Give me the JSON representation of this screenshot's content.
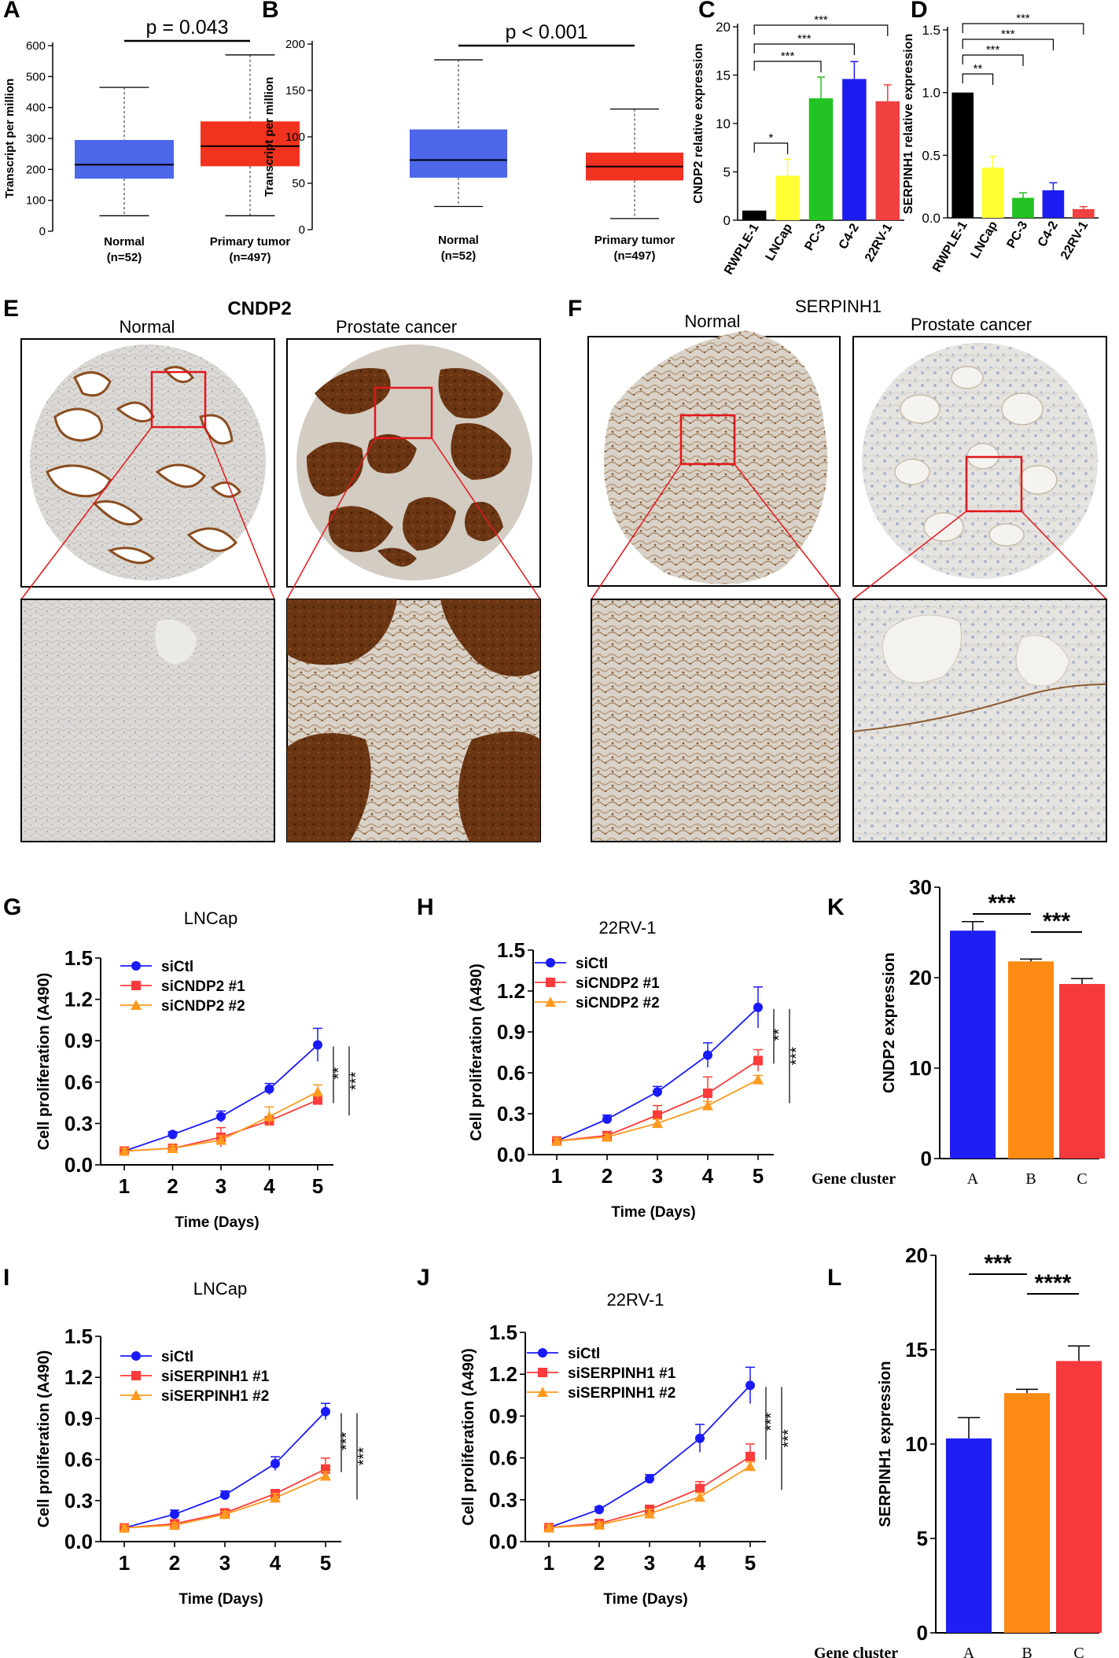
{
  "panels": {
    "A": {
      "label": "A",
      "p_text": "p = 0.043",
      "ylabel": "Transcript per  million",
      "yticks": [
        "0",
        "100",
        "200",
        "300",
        "400",
        "500",
        "600"
      ],
      "groups": [
        {
          "name": "Normal",
          "n": "(n=52)",
          "min": 50,
          "q1": 170,
          "median": 215,
          "q3": 295,
          "max": 465,
          "color": "#4c67e8"
        },
        {
          "name": "Primary tumor",
          "n": "(n=497)",
          "min": 50,
          "q1": 210,
          "median": 275,
          "q3": 355,
          "max": 570,
          "color": "#f0321e"
        }
      ],
      "ylim": [
        0,
        600
      ]
    },
    "B": {
      "label": "B",
      "p_text": "p < 0.001",
      "ylabel": "Transcript per  million",
      "yticks": [
        "0",
        "50",
        "100",
        "150",
        "200"
      ],
      "groups": [
        {
          "name": "Normal",
          "n": "(n=52)",
          "min": 25,
          "q1": 56,
          "median": 75,
          "q3": 108,
          "max": 183,
          "color": "#4c67e8"
        },
        {
          "name": "Primary tumor",
          "n": "(n=497)",
          "min": 12,
          "q1": 53,
          "median": 68,
          "q3": 83,
          "max": 130,
          "color": "#f0321e"
        }
      ],
      "ylim": [
        0,
        200
      ]
    },
    "C": {
      "label": "C",
      "ylabel": "CNDP2 relative expression",
      "yticks": [
        "0",
        "5",
        "10",
        "15",
        "20"
      ],
      "ylim": [
        0,
        20
      ],
      "bars": [
        {
          "name": "RWPLE-1",
          "value": 1.0,
          "err": 0.0,
          "color": "#000000"
        },
        {
          "name": "LNCap",
          "value": 4.6,
          "err": 1.7,
          "color": "#ffff33"
        },
        {
          "name": "PC-3",
          "value": 12.6,
          "err": 2.2,
          "color": "#22c322"
        },
        {
          "name": "C4-2",
          "value": 14.6,
          "err": 1.8,
          "color": "#1c1cf0"
        },
        {
          "name": "22RV-1",
          "value": 12.3,
          "err": 1.7,
          "color": "#f04040"
        }
      ],
      "sig": [
        "*",
        "***",
        "***",
        "***"
      ]
    },
    "D": {
      "label": "D",
      "ylabel": "SERPINH1  relative expression",
      "yticks": [
        "0.0",
        "0.5",
        "1.0",
        "1.5"
      ],
      "ylim": [
        0,
        1.5
      ],
      "bars": [
        {
          "name": "RWPLE-1",
          "value": 1.0,
          "err": 0.0,
          "color": "#000000"
        },
        {
          "name": "LNCap",
          "value": 0.4,
          "err": 0.09,
          "color": "#ffff33"
        },
        {
          "name": "PC-3",
          "value": 0.16,
          "err": 0.04,
          "color": "#22c322"
        },
        {
          "name": "C4-2",
          "value": 0.22,
          "err": 0.06,
          "color": "#1c1cf0"
        },
        {
          "name": "22RV-1",
          "value": 0.07,
          "err": 0.02,
          "color": "#f04040"
        }
      ],
      "sig": [
        "**",
        "***",
        "***",
        "***"
      ]
    },
    "E": {
      "label": "E",
      "title": "CNDP2",
      "left": "Normal",
      "right": "Prostate cancer"
    },
    "F": {
      "label": "F",
      "title": "SERPINH1",
      "left": "Normal",
      "right": "Prostate cancer"
    },
    "G": {
      "label": "G",
      "title": "LNCap"
    },
    "H": {
      "label": "H",
      "title": "22RV-1"
    },
    "I": {
      "label": "I",
      "title": "LNCap"
    },
    "J": {
      "label": "J",
      "title": "22RV-1"
    },
    "K": {
      "label": "K",
      "ylabel": "CNDP2 expression",
      "xlabel": "Gene cluster",
      "yticks": [
        "0",
        "10",
        "20",
        "30"
      ],
      "ylim": [
        0,
        30
      ],
      "bars": [
        {
          "name": "A",
          "value": 25.2,
          "err": 1.0,
          "color": "#1f1ff5"
        },
        {
          "name": "B",
          "value": 21.8,
          "err": 0.25,
          "color": "#ff8a14"
        },
        {
          "name": "C",
          "value": 19.3,
          "err": 0.6,
          "color": "#f5393d"
        }
      ],
      "sig": [
        "***",
        "***"
      ]
    },
    "L": {
      "label": "L",
      "ylabel": "SERPINH1 expression",
      "xlabel": "Gene cluster",
      "yticks": [
        "0",
        "5",
        "10",
        "15",
        "20"
      ],
      "ylim": [
        0,
        20
      ],
      "bars": [
        {
          "name": "A",
          "value": 10.3,
          "err": 1.1,
          "color": "#1f1ff5"
        },
        {
          "name": "B",
          "value": 12.7,
          "err": 0.2,
          "color": "#ff8a14"
        },
        {
          "name": "C",
          "value": 14.4,
          "err": 0.8,
          "color": "#f5393d"
        }
      ],
      "sig": [
        "***",
        "****"
      ]
    }
  },
  "line_common": {
    "xlabel": "Time (Days)",
    "ylabel": "Cell proliferation (A490)",
    "xticks": [
      "1",
      "2",
      "3",
      "4",
      "5"
    ],
    "yticks": [
      "0.0",
      "0.3",
      "0.6",
      "0.9",
      "1.2",
      "1.5"
    ],
    "ylim": [
      0,
      1.5
    ],
    "colors": [
      "#1a1aff",
      "#ff3b3b",
      "#ff9a1f"
    ]
  },
  "chart_data": [
    {
      "panel": "G",
      "type": "line",
      "title": "LNCap",
      "xlabel": "Time (Days)",
      "ylabel": "Cell proliferation (A490)",
      "x": [
        1,
        2,
        3,
        4,
        5
      ],
      "ylim": [
        0,
        1.5
      ],
      "series": [
        {
          "name": "siCtl",
          "values": [
            0.1,
            0.22,
            0.35,
            0.55,
            0.87
          ],
          "err": [
            0.02,
            0.02,
            0.04,
            0.04,
            0.12
          ]
        },
        {
          "name": "siCNDP2 #1",
          "values": [
            0.1,
            0.12,
            0.2,
            0.32,
            0.47
          ],
          "err": [
            0.02,
            0.02,
            0.07,
            0.03,
            0.03
          ]
        },
        {
          "name": "siCNDP2 #2",
          "values": [
            0.1,
            0.12,
            0.18,
            0.35,
            0.53
          ],
          "err": [
            0.02,
            0.02,
            0.03,
            0.07,
            0.05
          ]
        }
      ],
      "sig": [
        "**",
        "***"
      ]
    },
    {
      "panel": "H",
      "type": "line",
      "title": "22RV-1",
      "xlabel": "Time (Days)",
      "ylabel": "Cell proliferation (A490)",
      "x": [
        1,
        2,
        3,
        4,
        5
      ],
      "ylim": [
        0,
        1.5
      ],
      "series": [
        {
          "name": "siCtl",
          "values": [
            0.1,
            0.26,
            0.46,
            0.73,
            1.08
          ],
          "err": [
            0.02,
            0.03,
            0.04,
            0.09,
            0.15
          ]
        },
        {
          "name": "siCNDP2 #1",
          "values": [
            0.1,
            0.14,
            0.29,
            0.45,
            0.69
          ],
          "err": [
            0.02,
            0.02,
            0.07,
            0.12,
            0.08
          ]
        },
        {
          "name": "siCNDP2 #2",
          "values": [
            0.1,
            0.13,
            0.23,
            0.36,
            0.55
          ],
          "err": [
            0.02,
            0.02,
            0.03,
            0.03,
            0.03
          ]
        }
      ],
      "sig": [
        "**",
        "***"
      ]
    },
    {
      "panel": "I",
      "type": "line",
      "title": "LNCap",
      "xlabel": "Time (Days)",
      "ylabel": "Cell proliferation (A490)",
      "x": [
        1,
        2,
        3,
        4,
        5
      ],
      "ylim": [
        0,
        1.5
      ],
      "series": [
        {
          "name": "siCtl",
          "values": [
            0.1,
            0.2,
            0.34,
            0.57,
            0.95
          ],
          "err": [
            0.02,
            0.03,
            0.03,
            0.05,
            0.06
          ]
        },
        {
          "name": "siSERPINH1 #1",
          "values": [
            0.1,
            0.13,
            0.21,
            0.35,
            0.53
          ],
          "err": [
            0.02,
            0.02,
            0.02,
            0.03,
            0.08
          ]
        },
        {
          "name": "siSERPINH1 #2",
          "values": [
            0.1,
            0.12,
            0.2,
            0.32,
            0.48
          ],
          "err": [
            0.02,
            0.02,
            0.02,
            0.03,
            0.03
          ]
        }
      ],
      "sig": [
        "***",
        "***"
      ]
    },
    {
      "panel": "J",
      "type": "line",
      "title": "22RV-1",
      "xlabel": "Time (Days)",
      "ylabel": "Cell proliferation (A490)",
      "x": [
        1,
        2,
        3,
        4,
        5
      ],
      "ylim": [
        0,
        1.5
      ],
      "series": [
        {
          "name": "siCtl",
          "values": [
            0.1,
            0.23,
            0.45,
            0.74,
            1.12
          ],
          "err": [
            0.02,
            0.02,
            0.03,
            0.1,
            0.13
          ]
        },
        {
          "name": "siSERPINH1 #1",
          "values": [
            0.1,
            0.13,
            0.23,
            0.38,
            0.61
          ],
          "err": [
            0.02,
            0.02,
            0.03,
            0.05,
            0.09
          ]
        },
        {
          "name": "siSERPINH1 #2",
          "values": [
            0.1,
            0.12,
            0.2,
            0.32,
            0.54
          ],
          "err": [
            0.02,
            0.02,
            0.03,
            0.03,
            0.03
          ]
        }
      ],
      "sig": [
        "***",
        "***"
      ]
    }
  ]
}
